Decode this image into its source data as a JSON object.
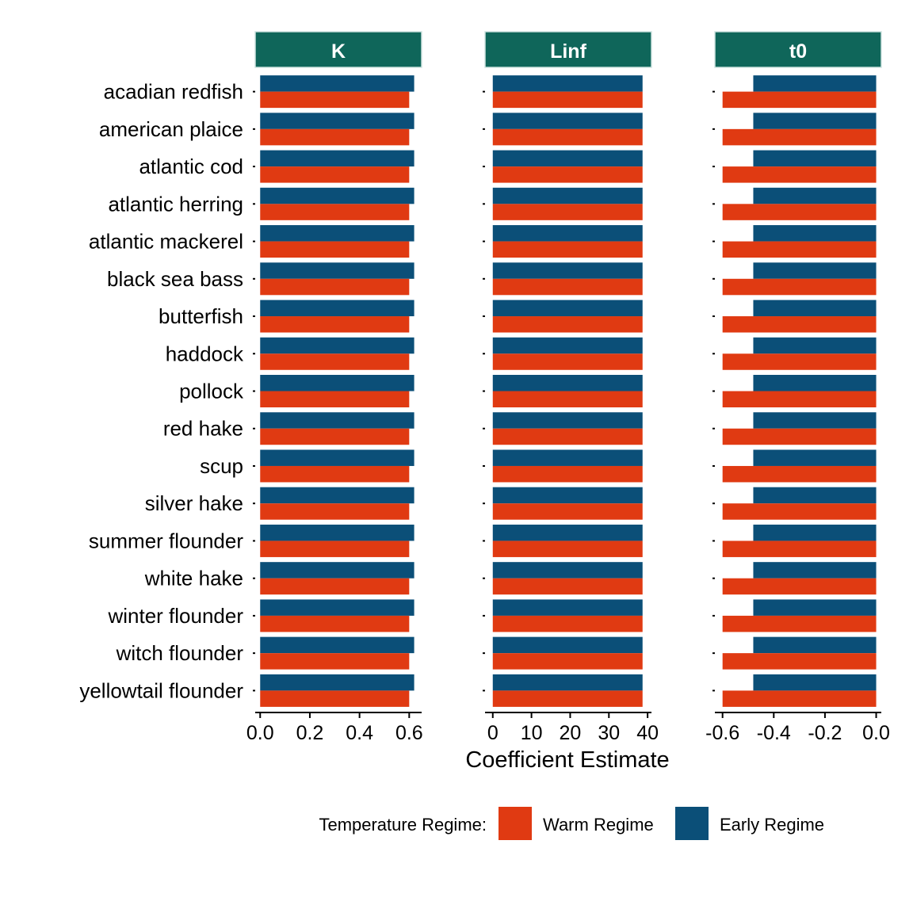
{
  "chart_data": {
    "type": "bar",
    "orientation": "horizontal",
    "xlabel": "Coefficient Estimate",
    "legend": {
      "title": "Temperature Regime:",
      "placement": "bottom",
      "items": [
        {
          "label": "Warm Regime",
          "color": "#e03a12"
        },
        {
          "label": "Early Regime",
          "color": "#0b4f78"
        }
      ]
    },
    "strip_color": "#0f665a",
    "categories": [
      "acadian redfish",
      "american plaice",
      "atlantic cod",
      "atlantic herring",
      "atlantic mackerel",
      "black sea bass",
      "butterfish",
      "haddock",
      "pollock",
      "red hake",
      "scup",
      "silver hake",
      "summer flounder",
      "white hake",
      "winter flounder",
      "witch flounder",
      "yellowtail flounder"
    ],
    "panels": [
      {
        "name": "K",
        "xlim": [
          -0.02,
          0.65
        ],
        "ticks": [
          0.0,
          0.2,
          0.4,
          0.6
        ],
        "tick_labels": [
          "0.0",
          "0.2",
          "0.4",
          "0.6"
        ],
        "series": [
          {
            "name": "Warm Regime",
            "values": [
              0.6,
              0.6,
              0.6,
              0.6,
              0.6,
              0.6,
              0.6,
              0.6,
              0.6,
              0.6,
              0.6,
              0.6,
              0.6,
              0.6,
              0.6,
              0.6,
              0.6
            ]
          },
          {
            "name": "Early Regime",
            "values": [
              0.62,
              0.62,
              0.62,
              0.62,
              0.62,
              0.62,
              0.62,
              0.62,
              0.62,
              0.62,
              0.62,
              0.62,
              0.62,
              0.62,
              0.62,
              0.62,
              0.62
            ]
          }
        ]
      },
      {
        "name": "Linf",
        "xlim": [
          -2,
          41
        ],
        "ticks": [
          0,
          10,
          20,
          30,
          40
        ],
        "tick_labels": [
          "0",
          "10",
          "20",
          "30",
          "40"
        ],
        "series": [
          {
            "name": "Warm Regime",
            "values": [
              38.7,
              38.7,
              38.7,
              38.7,
              38.7,
              38.7,
              38.7,
              38.7,
              38.7,
              38.7,
              38.7,
              38.7,
              38.7,
              38.7,
              38.7,
              38.7,
              38.7
            ]
          },
          {
            "name": "Early Regime",
            "values": [
              38.7,
              38.7,
              38.7,
              38.7,
              38.7,
              38.7,
              38.7,
              38.7,
              38.7,
              38.7,
              38.7,
              38.7,
              38.7,
              38.7,
              38.7,
              38.7,
              38.7
            ]
          }
        ]
      },
      {
        "name": "t0",
        "xlim": [
          -0.63,
          0.02
        ],
        "ticks": [
          -0.6,
          -0.4,
          -0.2,
          0.0
        ],
        "tick_labels": [
          "-0.6",
          "-0.4",
          "-0.2",
          "0.0"
        ],
        "series": [
          {
            "name": "Warm Regime",
            "values": [
              -0.6,
              -0.6,
              -0.6,
              -0.6,
              -0.6,
              -0.6,
              -0.6,
              -0.6,
              -0.6,
              -0.6,
              -0.6,
              -0.6,
              -0.6,
              -0.6,
              -0.6,
              -0.6,
              -0.6
            ]
          },
          {
            "name": "Early Regime",
            "values": [
              -0.48,
              -0.48,
              -0.48,
              -0.48,
              -0.48,
              -0.48,
              -0.48,
              -0.48,
              -0.48,
              -0.48,
              -0.48,
              -0.48,
              -0.48,
              -0.48,
              -0.48,
              -0.48,
              -0.48
            ]
          }
        ]
      }
    ]
  }
}
